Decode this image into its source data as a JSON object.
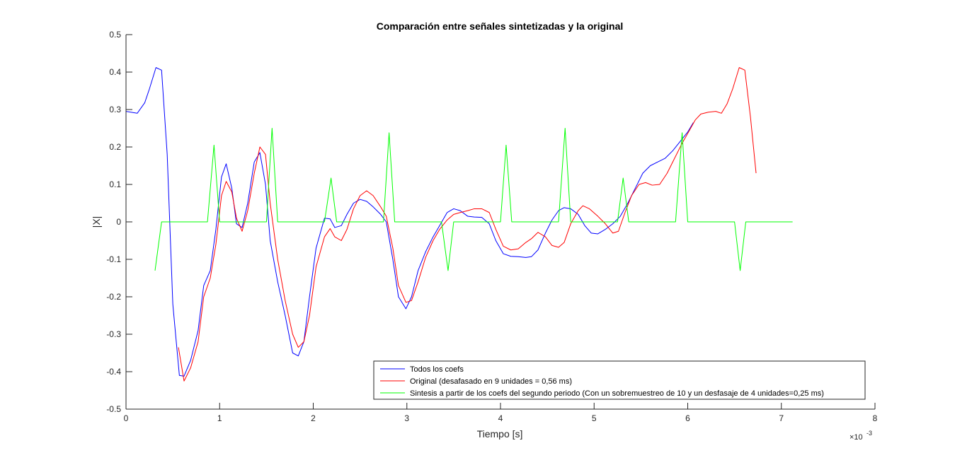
{
  "chart_data": {
    "type": "line",
    "title": "Comparación entre señales sintetizadas y la original",
    "xlabel": "Tiempo [s]",
    "ylabel": "|X|",
    "x_exponent_label": "×10",
    "x_exponent_power": "-3",
    "xlim": [
      0,
      8
    ],
    "ylim": [
      -0.5,
      0.5
    ],
    "x_ticks": [
      0,
      1,
      2,
      3,
      4,
      5,
      6,
      7,
      8
    ],
    "x_tick_labels": [
      "0",
      "1",
      "2",
      "3",
      "4",
      "5",
      "6",
      "7",
      "8"
    ],
    "y_ticks": [
      0.5,
      0.4,
      0.3,
      0.2,
      0.1,
      0,
      -0.1,
      -0.2,
      -0.3,
      -0.4,
      -0.5
    ],
    "y_tick_labels": [
      "0.5",
      "0.4",
      "0.3",
      "0.2",
      "0.1",
      "0",
      "-0.1",
      "-0.2",
      "-0.3",
      "-0.4",
      "-0.5"
    ],
    "grid": false,
    "legend_position": "bottom-right",
    "series": [
      {
        "name": "Todos los coefs",
        "color": "#0000ff",
        "points": [
          [
            0,
            0.295
          ],
          [
            0.12,
            0.29
          ],
          [
            0.2,
            0.318
          ],
          [
            0.25,
            0.355
          ],
          [
            0.32,
            0.412
          ],
          [
            0.38,
            0.405
          ],
          [
            0.44,
            0.18
          ],
          [
            0.5,
            -0.22
          ],
          [
            0.57,
            -0.41
          ],
          [
            0.62,
            -0.412
          ],
          [
            0.69,
            -0.37
          ],
          [
            0.77,
            -0.29
          ],
          [
            0.83,
            -0.17
          ],
          [
            0.9,
            -0.13
          ],
          [
            0.96,
            -0.02
          ],
          [
            1.02,
            0.12
          ],
          [
            1.07,
            0.155
          ],
          [
            1.13,
            0.09
          ],
          [
            1.18,
            -0.005
          ],
          [
            1.24,
            -0.015
          ],
          [
            1.3,
            0.05
          ],
          [
            1.37,
            0.16
          ],
          [
            1.43,
            0.185
          ],
          [
            1.49,
            0.1
          ],
          [
            1.54,
            -0.05
          ],
          [
            1.62,
            -0.16
          ],
          [
            1.7,
            -0.25
          ],
          [
            1.78,
            -0.35
          ],
          [
            1.84,
            -0.358
          ],
          [
            1.9,
            -0.32
          ],
          [
            1.96,
            -0.2
          ],
          [
            2.03,
            -0.07
          ],
          [
            2.12,
            0.01
          ],
          [
            2.18,
            0.008
          ],
          [
            2.23,
            -0.015
          ],
          [
            2.3,
            -0.01
          ],
          [
            2.36,
            0.02
          ],
          [
            2.43,
            0.05
          ],
          [
            2.5,
            0.06
          ],
          [
            2.57,
            0.055
          ],
          [
            2.64,
            0.04
          ],
          [
            2.72,
            0.02
          ],
          [
            2.78,
            0.0
          ],
          [
            2.85,
            -0.1
          ],
          [
            2.91,
            -0.2
          ],
          [
            2.99,
            -0.232
          ],
          [
            3.05,
            -0.2
          ],
          [
            3.12,
            -0.13
          ],
          [
            3.2,
            -0.08
          ],
          [
            3.28,
            -0.04
          ],
          [
            3.35,
            -0.01
          ],
          [
            3.43,
            0.025
          ],
          [
            3.5,
            0.035
          ],
          [
            3.57,
            0.03
          ],
          [
            3.65,
            0.015
          ],
          [
            3.72,
            0.013
          ],
          [
            3.8,
            0.012
          ],
          [
            3.88,
            -0.005
          ],
          [
            3.95,
            -0.05
          ],
          [
            4.03,
            -0.085
          ],
          [
            4.11,
            -0.092
          ],
          [
            4.19,
            -0.093
          ],
          [
            4.27,
            -0.095
          ],
          [
            4.33,
            -0.093
          ],
          [
            4.4,
            -0.075
          ],
          [
            4.48,
            -0.03
          ],
          [
            4.55,
            0.005
          ],
          [
            4.62,
            0.03
          ],
          [
            4.68,
            0.038
          ],
          [
            4.75,
            0.035
          ],
          [
            4.83,
            0.02
          ],
          [
            4.9,
            -0.01
          ],
          [
            4.97,
            -0.03
          ],
          [
            5.04,
            -0.032
          ],
          [
            5.12,
            -0.02
          ],
          [
            5.2,
            -0.005
          ],
          [
            5.28,
            0.015
          ],
          [
            5.36,
            0.05
          ],
          [
            5.44,
            0.09
          ],
          [
            5.52,
            0.13
          ],
          [
            5.6,
            0.15
          ],
          [
            5.68,
            0.16
          ],
          [
            5.76,
            0.17
          ],
          [
            5.84,
            0.19
          ],
          [
            5.92,
            0.215
          ],
          [
            6.0,
            0.24
          ],
          [
            6.06,
            0.265
          ]
        ]
      },
      {
        "name": "Original (desafasado en 9 unidades = 0,56 ms)",
        "color": "#ff0000",
        "points": [
          [
            0.56,
            -0.335
          ],
          [
            0.62,
            -0.425
          ],
          [
            0.69,
            -0.39
          ],
          [
            0.77,
            -0.32
          ],
          [
            0.83,
            -0.2
          ],
          [
            0.9,
            -0.15
          ],
          [
            0.96,
            -0.06
          ],
          [
            1.02,
            0.07
          ],
          [
            1.07,
            0.108
          ],
          [
            1.13,
            0.08
          ],
          [
            1.18,
            0.01
          ],
          [
            1.24,
            -0.025
          ],
          [
            1.3,
            0.03
          ],
          [
            1.37,
            0.13
          ],
          [
            1.43,
            0.2
          ],
          [
            1.49,
            0.18
          ],
          [
            1.54,
            0.05
          ],
          [
            1.62,
            -0.1
          ],
          [
            1.7,
            -0.21
          ],
          [
            1.78,
            -0.3
          ],
          [
            1.84,
            -0.335
          ],
          [
            1.9,
            -0.32
          ],
          [
            1.96,
            -0.25
          ],
          [
            2.03,
            -0.12
          ],
          [
            2.12,
            -0.04
          ],
          [
            2.18,
            -0.018
          ],
          [
            2.23,
            -0.04
          ],
          [
            2.3,
            -0.05
          ],
          [
            2.36,
            -0.02
          ],
          [
            2.43,
            0.035
          ],
          [
            2.5,
            0.07
          ],
          [
            2.57,
            0.083
          ],
          [
            2.64,
            0.07
          ],
          [
            2.72,
            0.04
          ],
          [
            2.78,
            0.015
          ],
          [
            2.85,
            -0.07
          ],
          [
            2.91,
            -0.17
          ],
          [
            2.99,
            -0.215
          ],
          [
            3.05,
            -0.21
          ],
          [
            3.12,
            -0.16
          ],
          [
            3.2,
            -0.095
          ],
          [
            3.28,
            -0.05
          ],
          [
            3.35,
            -0.02
          ],
          [
            3.43,
            0.005
          ],
          [
            3.5,
            0.02
          ],
          [
            3.57,
            0.025
          ],
          [
            3.65,
            0.03
          ],
          [
            3.72,
            0.035
          ],
          [
            3.8,
            0.035
          ],
          [
            3.88,
            0.025
          ],
          [
            3.95,
            -0.02
          ],
          [
            4.03,
            -0.065
          ],
          [
            4.11,
            -0.075
          ],
          [
            4.19,
            -0.072
          ],
          [
            4.27,
            -0.055
          ],
          [
            4.33,
            -0.045
          ],
          [
            4.4,
            -0.028
          ],
          [
            4.48,
            -0.04
          ],
          [
            4.55,
            -0.063
          ],
          [
            4.62,
            -0.068
          ],
          [
            4.68,
            -0.055
          ],
          [
            4.75,
            -0.005
          ],
          [
            4.83,
            0.03
          ],
          [
            4.88,
            0.043
          ],
          [
            4.95,
            0.035
          ],
          [
            5.04,
            0.015
          ],
          [
            5.12,
            -0.005
          ],
          [
            5.2,
            -0.03
          ],
          [
            5.26,
            -0.025
          ],
          [
            5.33,
            0.025
          ],
          [
            5.4,
            0.07
          ],
          [
            5.48,
            0.1
          ],
          [
            5.55,
            0.105
          ],
          [
            5.62,
            0.098
          ],
          [
            5.7,
            0.1
          ],
          [
            5.78,
            0.13
          ],
          [
            5.86,
            0.17
          ],
          [
            5.94,
            0.21
          ],
          [
            6.02,
            0.245
          ],
          [
            6.08,
            0.272
          ],
          [
            6.14,
            0.288
          ],
          [
            6.22,
            0.293
          ],
          [
            6.3,
            0.295
          ],
          [
            6.36,
            0.29
          ],
          [
            6.42,
            0.315
          ],
          [
            6.48,
            0.355
          ],
          [
            6.55,
            0.412
          ],
          [
            6.61,
            0.405
          ],
          [
            6.67,
            0.28
          ],
          [
            6.73,
            0.13
          ]
        ]
      },
      {
        "name": "Sintesis a partir de los coefs del segundo periodo (Con un sobremuestreo de 10 y un desfasaje de 4 unidades=0,25 ms)",
        "color": "#00ff00",
        "points": [
          [
            0.31,
            -0.13
          ],
          [
            0.38,
            0
          ],
          [
            0.87,
            0
          ],
          [
            0.94,
            0.205
          ],
          [
            1.0,
            0
          ],
          [
            1.5,
            0
          ],
          [
            1.56,
            0.25
          ],
          [
            1.62,
            0
          ],
          [
            2.12,
            0
          ],
          [
            2.19,
            0.117
          ],
          [
            2.25,
            0
          ],
          [
            2.75,
            0
          ],
          [
            2.81,
            0.238
          ],
          [
            2.87,
            0
          ],
          [
            3.37,
            0
          ],
          [
            3.44,
            -0.13
          ],
          [
            3.5,
            0
          ],
          [
            4.0,
            0
          ],
          [
            4.06,
            0.205
          ],
          [
            4.12,
            0
          ],
          [
            4.62,
            0
          ],
          [
            4.69,
            0.25
          ],
          [
            4.75,
            0
          ],
          [
            5.25,
            0
          ],
          [
            5.31,
            0.117
          ],
          [
            5.37,
            0
          ],
          [
            5.87,
            0
          ],
          [
            5.94,
            0.238
          ],
          [
            6.0,
            0
          ],
          [
            6.5,
            0
          ],
          [
            6.56,
            -0.13
          ],
          [
            6.62,
            0
          ],
          [
            7.12,
            0
          ]
        ]
      }
    ]
  }
}
